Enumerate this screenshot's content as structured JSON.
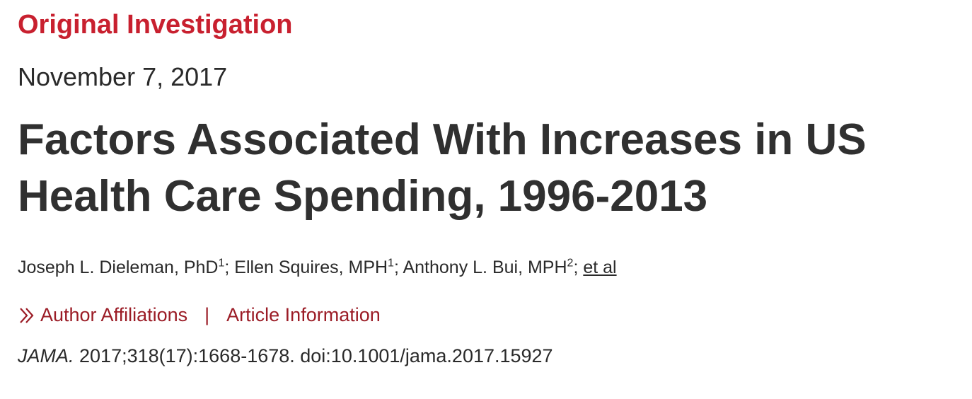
{
  "article": {
    "type_label": "Original Investigation",
    "date": "November 7, 2017",
    "title": "Factors Associated With Increases in US Health Care Spending, 1996-2013",
    "authors": [
      {
        "name": "Joseph L. Dieleman, PhD",
        "affiliation": "1"
      },
      {
        "name": "Ellen Squires, MPH",
        "affiliation": "1"
      },
      {
        "name": "Anthony L. Bui, MPH",
        "affiliation": "2"
      }
    ],
    "author_separator": "; ",
    "et_al": "et al",
    "links": {
      "author_affiliations": "Author Affiliations",
      "separator": "|",
      "article_information": "Article Information"
    },
    "citation": {
      "journal": "JAMA.",
      "reference": " 2017;318(17):1668-1678. doi:10.1001/jama.2017.15927"
    }
  },
  "colors": {
    "accent_red": "#c8202f",
    "link_red": "#9b1c26",
    "text": "#2a2a2a"
  },
  "icons": {
    "expand": "double-chevron-right-icon"
  }
}
